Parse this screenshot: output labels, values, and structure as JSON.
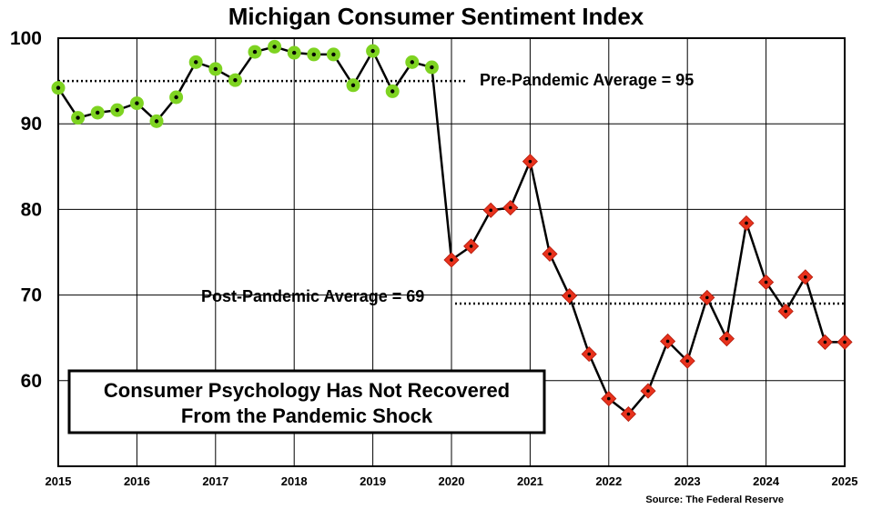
{
  "chart_data": {
    "type": "line",
    "title": "Michigan Consumer Sentiment Index",
    "xlabel": "",
    "ylabel": "",
    "ylim": [
      50,
      100
    ],
    "xlim": [
      2015,
      2025
    ],
    "yticks": [
      "60",
      "70",
      "80",
      "90",
      "100"
    ],
    "xticks": [
      "2015",
      "2016",
      "2017",
      "2018",
      "2019",
      "2020",
      "2021",
      "2022",
      "2023",
      "2024",
      "2025"
    ],
    "grid": true,
    "colors": {
      "pre": "#7ed321",
      "post": "#e8321c",
      "line": "#000000"
    },
    "series": [
      {
        "x": [
          2015.0,
          2015.25,
          2015.5,
          2015.75,
          2016.0,
          2016.25,
          2016.5,
          2016.75,
          2017.0,
          2017.25,
          2017.5,
          2017.75,
          2018.0,
          2018.25,
          2018.5,
          2018.75,
          2019.0,
          2019.25,
          2019.5,
          2019.75,
          2020.0,
          2020.25,
          2020.5,
          2020.75,
          2021.0,
          2021.25,
          2021.5,
          2021.75,
          2022.0,
          2022.25,
          2022.5,
          2022.75,
          2023.0,
          2023.25,
          2023.5,
          2023.75,
          2024.0,
          2024.25,
          2024.5,
          2024.75,
          2025.0
        ],
        "y": [
          94.2,
          90.7,
          91.3,
          91.6,
          92.4,
          90.3,
          93.1,
          97.2,
          96.4,
          95.1,
          98.4,
          99.0,
          98.3,
          98.1,
          98.1,
          94.5,
          98.5,
          93.8,
          97.2,
          96.6,
          74.1,
          75.7,
          79.9,
          80.2,
          85.6,
          74.8,
          69.9,
          63.1,
          57.9,
          56.1,
          58.8,
          64.6,
          62.3,
          69.7,
          64.9,
          78.4,
          71.5,
          68.1,
          72.1,
          64.5,
          64.5
        ]
      }
    ],
    "annotations": {
      "pre_avg_label": "Pre-Pandemic Average = 95",
      "pre_avg_value": 95,
      "post_avg_label": "Post-Pandemic Average = 69",
      "post_avg_value": 69,
      "box_line1": "Consumer Psychology Has Not Recovered",
      "box_line2": "From the Pandemic Shock"
    },
    "source": "Source: The Federal Reserve"
  }
}
